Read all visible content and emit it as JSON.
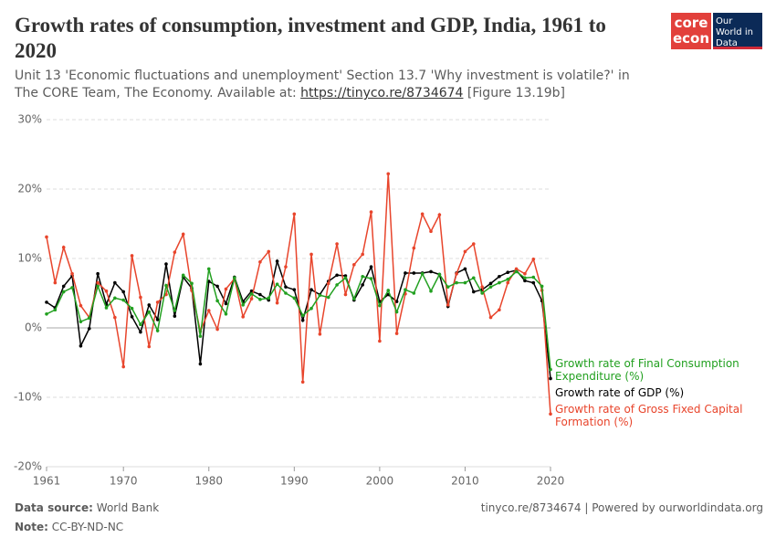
{
  "chart_data": {
    "type": "line",
    "title": "Growth rates of consumption, investment and GDP, India, 1961 to 2020",
    "subtitle": "Unit 13 'Economic fluctuations and unemployment' Section 13.7 'Why investment is volatile?' in The CORE Team, The Economy. Available at:",
    "subtitle_link": "https://tinyco.re/8734674",
    "subtitle_note": "[Figure 13.19b]",
    "logos": {
      "core": "core",
      "econ": "econ",
      "owid": "Our World in Data"
    },
    "x": [
      1961,
      1962,
      1963,
      1964,
      1965,
      1966,
      1967,
      1968,
      1969,
      1970,
      1971,
      1972,
      1973,
      1974,
      1975,
      1976,
      1977,
      1978,
      1979,
      1980,
      1981,
      1982,
      1983,
      1984,
      1985,
      1986,
      1987,
      1988,
      1989,
      1990,
      1991,
      1992,
      1993,
      1994,
      1995,
      1996,
      1997,
      1998,
      1999,
      2000,
      2001,
      2002,
      2003,
      2004,
      2005,
      2006,
      2007,
      2008,
      2009,
      2010,
      2011,
      2012,
      2013,
      2014,
      2015,
      2016,
      2017,
      2018,
      2019,
      2020
    ],
    "series": [
      {
        "name": "Growth rate of GDP (%)",
        "color": "#000000",
        "values": [
          3.7,
          2.9,
          6.0,
          7.5,
          -2.6,
          -0.1,
          7.8,
          3.4,
          6.5,
          5.2,
          1.6,
          -0.6,
          3.3,
          1.2,
          9.2,
          1.7,
          7.3,
          5.7,
          -5.2,
          6.7,
          6.0,
          3.5,
          7.3,
          3.8,
          5.3,
          4.8,
          4.0,
          9.6,
          5.9,
          5.5,
          1.1,
          5.5,
          4.8,
          6.7,
          7.6,
          7.5,
          4.0,
          6.2,
          8.8,
          3.8,
          4.8,
          3.8,
          7.9,
          7.9,
          7.9,
          8.1,
          7.7,
          3.1,
          7.9,
          8.5,
          5.2,
          5.5,
          6.4,
          7.4,
          8.0,
          8.3,
          6.8,
          6.5,
          3.9,
          -7.3
        ]
      },
      {
        "name": "Growth rate of Gross Fixed Capital Formation (%)",
        "color": "#e8452c",
        "values": [
          13.1,
          6.5,
          11.6,
          7.8,
          3.2,
          1.5,
          6.5,
          5.3,
          1.5,
          -5.6,
          10.4,
          4.4,
          -2.7,
          3.7,
          4.8,
          10.9,
          13.5,
          5.4,
          -0.5,
          2.5,
          -0.2,
          5.6,
          7.1,
          1.6,
          4.2,
          9.5,
          11.0,
          3.6,
          8.8,
          16.4,
          -7.8,
          10.6,
          -0.9,
          6.4,
          12.1,
          4.8,
          9.1,
          10.6,
          16.7,
          -1.9,
          22.2,
          -0.8,
          4.9,
          11.5,
          16.4,
          13.9,
          16.3,
          3.3,
          7.8,
          11.0,
          12.1,
          5.9,
          1.5,
          2.6,
          6.5,
          8.5,
          7.8,
          9.9,
          5.4,
          -12.4
        ]
      },
      {
        "name": "Growth rate of Final Consumption Expenditure (%)",
        "color": "#22a020",
        "values": [
          2.0,
          2.6,
          5.2,
          5.8,
          0.9,
          1.4,
          6.0,
          2.9,
          4.3,
          4.0,
          2.8,
          0.5,
          2.3,
          -0.4,
          6.1,
          2.5,
          7.6,
          6.4,
          -1.2,
          8.5,
          3.9,
          2.0,
          7.2,
          3.3,
          4.9,
          4.1,
          4.3,
          6.3,
          5.0,
          4.3,
          1.8,
          2.8,
          4.7,
          4.4,
          6.2,
          7.2,
          4.2,
          7.4,
          7.1,
          3.2,
          5.4,
          2.3,
          5.5,
          5.0,
          7.8,
          5.3,
          7.7,
          5.9,
          6.5,
          6.5,
          7.2,
          5.0,
          5.9,
          6.5,
          7.0,
          8.1,
          7.2,
          7.3,
          6.0,
          -6.0
        ]
      }
    ],
    "xlim": [
      1961,
      2020
    ],
    "xticks": [
      1961,
      1970,
      1980,
      1990,
      2000,
      2010,
      2020
    ],
    "ylim": [
      -20,
      30
    ],
    "yticks": [
      {
        "value": -20,
        "label": "-20%"
      },
      {
        "value": -10,
        "label": "-10%"
      },
      {
        "value": 0,
        "label": "0%"
      },
      {
        "value": 10,
        "label": "10%"
      },
      {
        "value": 20,
        "label": "20%"
      },
      {
        "value": 30,
        "label": "30%"
      }
    ],
    "grid": true,
    "legend": "right",
    "source_label": "Data source:",
    "source": "World Bank",
    "note_label": "Note:",
    "note": "CC-BY-ND-NC",
    "credit": "tinyco.re/8734674 | Powered by ourworldindata.org"
  }
}
